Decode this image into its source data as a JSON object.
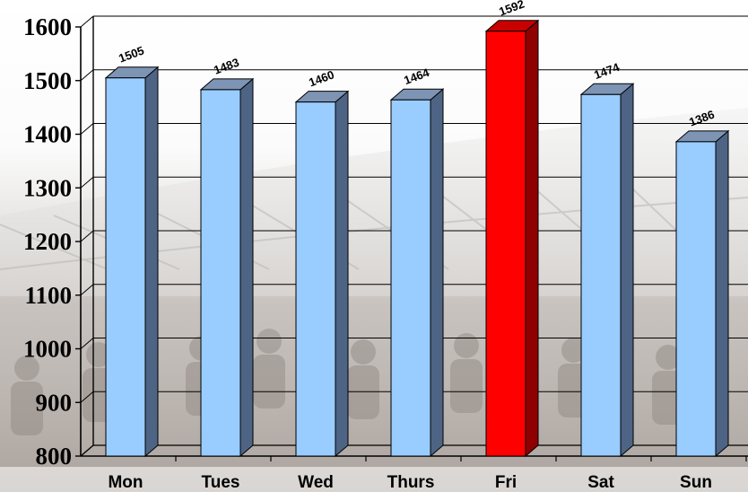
{
  "chart_data": {
    "type": "bar",
    "style": "3d-column",
    "categories": [
      "Mon",
      "Tues",
      "Wed",
      "Thurs",
      "Fri",
      "Sat",
      "Sun"
    ],
    "values": [
      1505,
      1483,
      1460,
      1464,
      1592,
      1474,
      1386
    ],
    "highlight_category": "Fri",
    "title": "",
    "xlabel": "",
    "ylabel": "",
    "ylim": [
      800,
      1600
    ],
    "yticks": [
      800,
      900,
      1000,
      1100,
      1200,
      1300,
      1400,
      1500,
      1600
    ],
    "grid": true,
    "legend": "none",
    "data_labels": true,
    "colors": {
      "bar_front": "#99ccff",
      "bar_side": "#4e6485",
      "bar_top": "#7e94b5",
      "highlight_front": "#ff0000",
      "highlight_side": "#8f0000",
      "highlight_top": "#c80000",
      "gridline": "#000000"
    }
  }
}
